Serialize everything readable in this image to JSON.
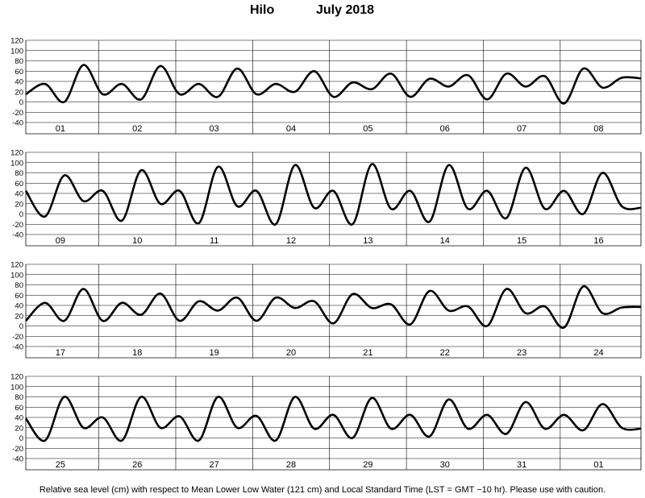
{
  "header": {
    "station": "Hilo",
    "month_year": "July   2018"
  },
  "footer": {
    "note": "Relative sea level (cm) with respect to Mean Lower Low Water (121 cm) and Local Standard Time (LST = GMT −10 hr). Please use with caution."
  },
  "chart_data": [
    {
      "type": "line",
      "title": "Hilo July 2018",
      "ylabel": "Relative sea level (cm)",
      "ylim": [
        -40,
        120
      ],
      "yticks": [
        -40,
        -20,
        0,
        20,
        40,
        60,
        80,
        100,
        120
      ],
      "grid": true,
      "day_labels": [
        "01",
        "02",
        "03",
        "04",
        "05",
        "06",
        "07",
        "08"
      ],
      "x": [
        0,
        0.25,
        0.5,
        0.75,
        1,
        1.25,
        1.5,
        1.75,
        2,
        2.25,
        2.5,
        2.75,
        3,
        3.25,
        3.5,
        3.75,
        4,
        4.25,
        4.5,
        4.75,
        5,
        5.25,
        5.5,
        5.75,
        6,
        6.25,
        6.5,
        6.75,
        7,
        7.25,
        7.5,
        7.75,
        8
      ],
      "values": [
        15,
        35,
        0,
        72,
        15,
        35,
        5,
        70,
        15,
        35,
        10,
        65,
        15,
        35,
        20,
        60,
        10,
        38,
        25,
        55,
        10,
        45,
        30,
        52,
        5,
        55,
        30,
        50,
        -3,
        65,
        28,
        47,
        46
      ]
    },
    {
      "type": "line",
      "title": "Hilo July 2018",
      "ylabel": "Relative sea level (cm)",
      "ylim": [
        -40,
        120
      ],
      "yticks": [
        -40,
        -20,
        0,
        20,
        40,
        60,
        80,
        100,
        120
      ],
      "grid": true,
      "day_labels": [
        "09",
        "10",
        "11",
        "12",
        "13",
        "14",
        "15",
        "16"
      ],
      "x": [
        0,
        0.25,
        0.5,
        0.75,
        1,
        1.25,
        1.5,
        1.75,
        2,
        2.25,
        2.5,
        2.75,
        3,
        3.25,
        3.5,
        3.75,
        4,
        4.25,
        4.5,
        4.75,
        5,
        5.25,
        5.5,
        5.75,
        6,
        6.25,
        6.5,
        6.75,
        7,
        7.25,
        7.5,
        7.75,
        8
      ],
      "values": [
        45,
        -5,
        75,
        25,
        45,
        -13,
        85,
        20,
        45,
        -18,
        92,
        15,
        45,
        -20,
        95,
        12,
        45,
        -20,
        97,
        10,
        45,
        -15,
        95,
        10,
        45,
        -8,
        90,
        10,
        45,
        0,
        80,
        15,
        12
      ]
    },
    {
      "type": "line",
      "title": "Hilo July 2018",
      "ylabel": "Relative sea level (cm)",
      "ylim": [
        -40,
        120
      ],
      "yticks": [
        -40,
        -20,
        0,
        20,
        40,
        60,
        80,
        100,
        120
      ],
      "grid": true,
      "day_labels": [
        "17",
        "18",
        "19",
        "20",
        "21",
        "22",
        "23",
        "24"
      ],
      "x": [
        0,
        0.25,
        0.5,
        0.75,
        1,
        1.25,
        1.5,
        1.75,
        2,
        2.25,
        2.5,
        2.75,
        3,
        3.25,
        3.5,
        3.75,
        4,
        4.25,
        4.5,
        4.75,
        5,
        5.25,
        5.5,
        5.75,
        6,
        6.25,
        6.5,
        6.75,
        7,
        7.25,
        7.5,
        7.75,
        8
      ],
      "values": [
        10,
        45,
        10,
        72,
        10,
        45,
        22,
        63,
        10,
        48,
        30,
        55,
        10,
        55,
        35,
        48,
        5,
        62,
        35,
        42,
        3,
        68,
        30,
        38,
        0,
        72,
        25,
        38,
        -3,
        77,
        25,
        36,
        37
      ]
    },
    {
      "type": "line",
      "title": "Hilo July 2018",
      "ylabel": "Relative sea level (cm)",
      "ylim": [
        -40,
        120
      ],
      "yticks": [
        -40,
        -20,
        0,
        20,
        40,
        60,
        80,
        100,
        120
      ],
      "grid": true,
      "day_labels": [
        "25",
        "26",
        "27",
        "28",
        "29",
        "30",
        "31",
        "01"
      ],
      "x": [
        0,
        0.25,
        0.5,
        0.75,
        1,
        1.25,
        1.5,
        1.75,
        2,
        2.25,
        2.5,
        2.75,
        3,
        3.25,
        3.5,
        3.75,
        4,
        4.25,
        4.5,
        4.75,
        5,
        5.25,
        5.5,
        5.75,
        6,
        6.25,
        6.5,
        6.75,
        7,
        7.25,
        7.5,
        7.75,
        8
      ],
      "values": [
        38,
        -5,
        80,
        20,
        40,
        -5,
        80,
        20,
        42,
        -5,
        80,
        20,
        43,
        -5,
        80,
        18,
        45,
        0,
        78,
        18,
        45,
        3,
        75,
        18,
        45,
        8,
        70,
        18,
        45,
        15,
        66,
        20,
        18
      ]
    }
  ]
}
